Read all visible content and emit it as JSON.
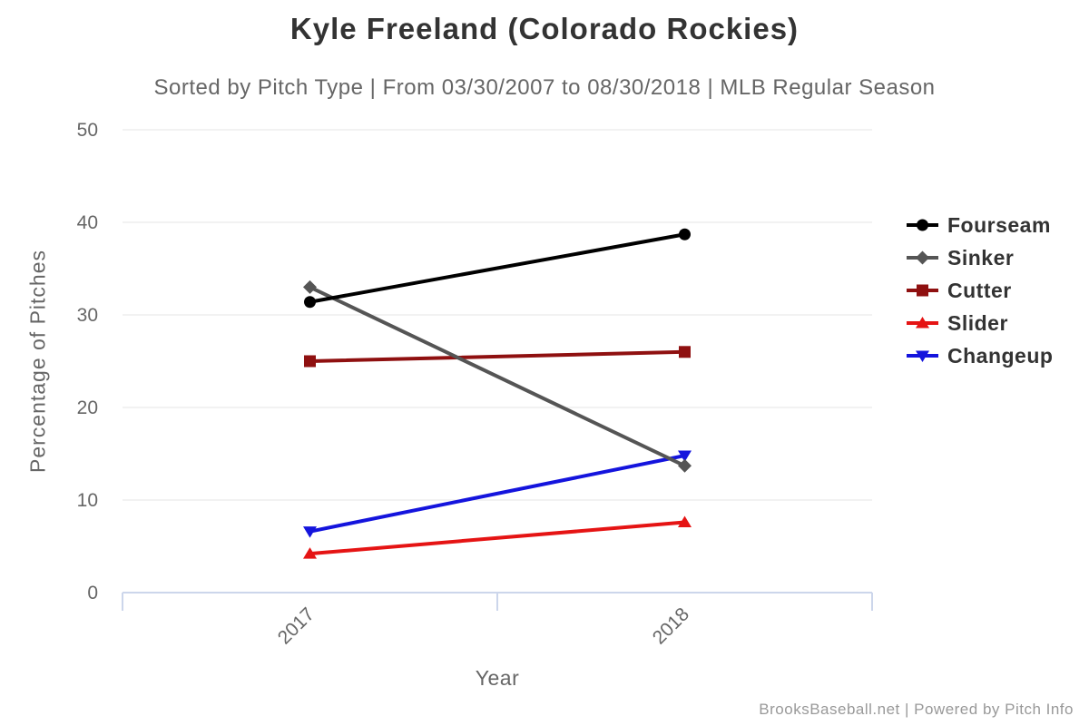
{
  "chart_data": {
    "type": "line",
    "title": "Kyle Freeland (Colorado Rockies)",
    "subtitle": "Sorted by Pitch Type | From 03/30/2007 to 08/30/2018 | MLB Regular Season",
    "xlabel": "Year",
    "ylabel": "Percentage of Pitches",
    "categories": [
      "2017",
      "2018"
    ],
    "yticks": [
      0,
      10,
      20,
      30,
      40,
      50
    ],
    "ylim": [
      0,
      50
    ],
    "grid": true,
    "legend_position": "right",
    "series": [
      {
        "name": "Fourseam",
        "color": "#000000",
        "marker": "circle",
        "values": [
          31.4,
          38.7
        ]
      },
      {
        "name": "Sinker",
        "color": "#555555",
        "marker": "diamond",
        "values": [
          33.0,
          13.7
        ]
      },
      {
        "name": "Cutter",
        "color": "#8f1010",
        "marker": "square",
        "values": [
          25.0,
          26.0
        ]
      },
      {
        "name": "Slider",
        "color": "#e51414",
        "marker": "triangle-up",
        "values": [
          4.2,
          7.6
        ]
      },
      {
        "name": "Changeup",
        "color": "#1414dd",
        "marker": "triangle-down",
        "values": [
          6.6,
          14.8
        ]
      }
    ],
    "colors": {
      "background": "#ffffff",
      "gridline": "#e6e6e6",
      "axis_line": "#ccd6eb",
      "title_text": "#333333",
      "subtitle_text": "#666666",
      "tick_text": "#666666",
      "axis_title_text": "#666666",
      "legend_text": "#333333",
      "credit_text": "#999999"
    }
  },
  "footer": {
    "credit": "BrooksBaseball.net | Powered by Pitch Info"
  }
}
